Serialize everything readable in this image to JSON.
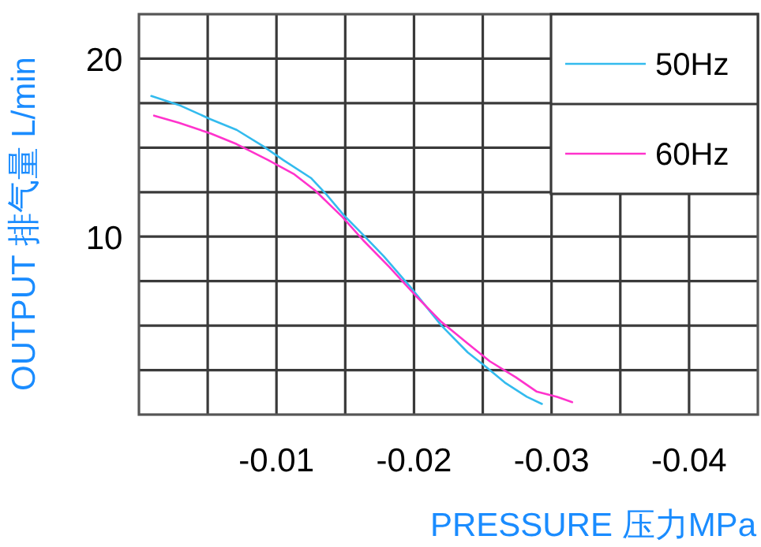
{
  "chart_data": {
    "type": "line",
    "xlabel": "PRESSURE 压力MPa",
    "ylabel": "OUTPUT 排气量 L/min",
    "xlim": [
      0,
      -0.045
    ],
    "ylim": [
      0,
      22.5
    ],
    "xticks": [
      {
        "value": -0.005,
        "label": null
      },
      -0.01,
      {
        "value": -0.015,
        "label": null
      },
      -0.02,
      {
        "value": -0.025,
        "label": null
      },
      -0.03,
      {
        "value": -0.035,
        "label": null
      },
      -0.04
    ],
    "yticks": [
      {
        "value": 2.5,
        "label": null
      },
      {
        "value": 5,
        "label": null
      },
      {
        "value": 7.5,
        "label": null
      },
      10,
      {
        "value": 12.5,
        "label": null
      },
      {
        "value": 15,
        "label": null
      },
      {
        "value": 17.5,
        "label": null
      },
      20
    ],
    "grid": true,
    "legend": "top right",
    "line_style": "solid",
    "marker": "none",
    "series": [
      {
        "name": "50Hz",
        "color": "#33bbee",
        "x": [
          -0.0009,
          -0.0029,
          -0.0052,
          -0.0071,
          -0.009,
          -0.0105,
          -0.0125,
          -0.0136,
          -0.0149,
          -0.0163,
          -0.0178,
          -0.0197,
          -0.022,
          -0.0239,
          -0.0252,
          -0.0266,
          -0.0282,
          -0.0293
        ],
        "values": [
          17.9,
          17.4,
          16.6,
          16.0,
          15.1,
          14.3,
          13.3,
          12.4,
          11.2,
          10.1,
          8.9,
          7.2,
          5.0,
          3.5,
          2.7,
          1.8,
          1.0,
          0.6
        ]
      },
      {
        "name": "60Hz",
        "color": "#ff33cc",
        "x": [
          -0.0011,
          -0.0029,
          -0.0052,
          -0.0071,
          -0.0094,
          -0.0113,
          -0.0128,
          -0.0148,
          -0.0163,
          -0.0182,
          -0.0201,
          -0.022,
          -0.0239,
          -0.0255,
          -0.0274,
          -0.0289,
          -0.0304,
          -0.0315
        ],
        "values": [
          16.8,
          16.4,
          15.8,
          15.2,
          14.3,
          13.5,
          12.6,
          11.1,
          9.8,
          8.3,
          6.7,
          5.2,
          4.0,
          3.0,
          2.1,
          1.3,
          1.0,
          0.7
        ]
      }
    ]
  }
}
